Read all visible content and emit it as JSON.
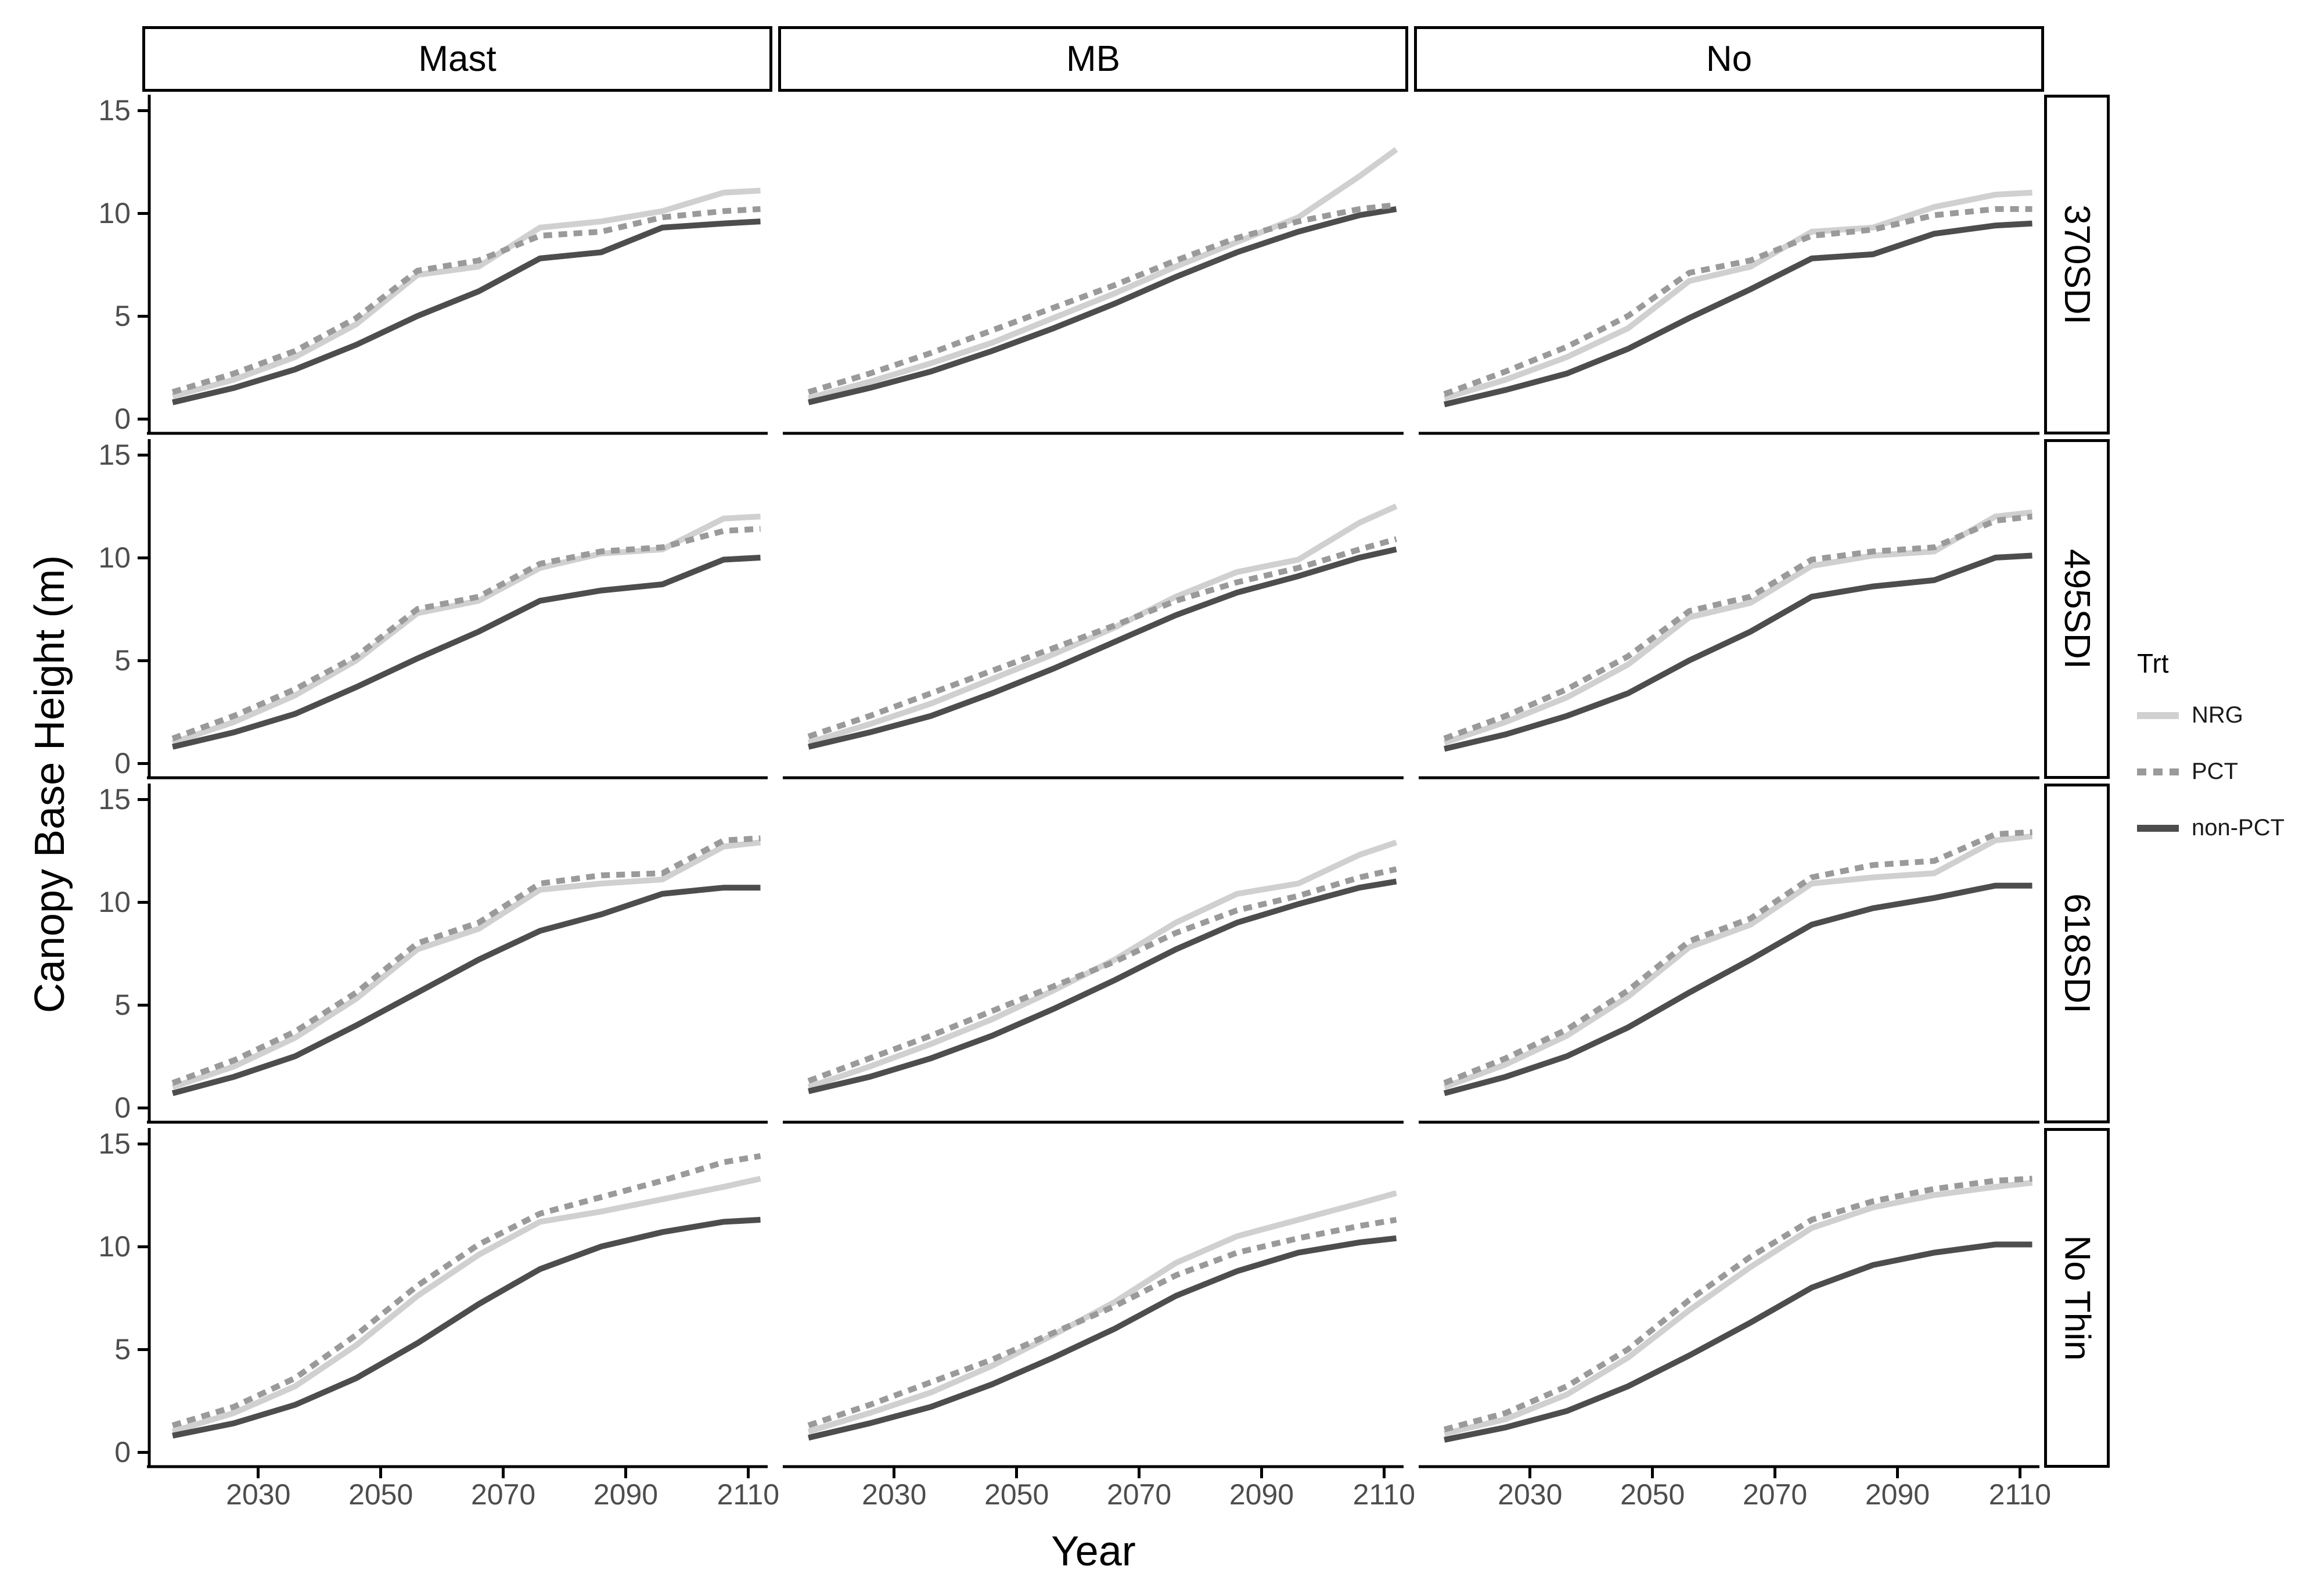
{
  "figure": {
    "y_axis_title": "Canopy Base Height (m)",
    "x_axis_title": "Year",
    "legend": {
      "title": "Trt",
      "entries": [
        {
          "label": "NRG",
          "color": "#d0d0d0",
          "dash": null
        },
        {
          "label": "PCT",
          "color": "#9a9a9a",
          "dash": "15 11"
        },
        {
          "label": "non-PCT",
          "color": "#4d4d4d",
          "dash": null
        }
      ]
    },
    "colors": {
      "axis_line": "#000000",
      "tick_text": "#4d4d4d",
      "strip_border": "#000000"
    }
  },
  "chart_data": {
    "type": "line",
    "title": "",
    "xlabel": "Year",
    "ylabel": "Canopy Base Height (m)",
    "col_facets": [
      "Mast",
      "MB",
      "No"
    ],
    "row_facets": [
      "370SDI",
      "495SDI",
      "618SDI",
      "No Thin"
    ],
    "x_ticks": [
      2030,
      2050,
      2070,
      2090,
      2110
    ],
    "y_ticks": [
      0,
      5,
      10,
      15
    ],
    "x_range": [
      2012,
      2113
    ],
    "y_range": [
      0,
      15
    ],
    "grid": "off",
    "legend_position": "right",
    "x": [
      2016,
      2026,
      2036,
      2046,
      2056,
      2066,
      2076,
      2086,
      2096,
      2106,
      2112
    ],
    "facets": [
      {
        "row": "370SDI",
        "col": "Mast",
        "series": {
          "NRG": [
            1.1,
            1.9,
            3.0,
            4.6,
            7.0,
            7.4,
            9.3,
            9.6,
            10.1,
            11.0,
            11.1
          ],
          "PCT": [
            1.3,
            2.2,
            3.3,
            4.9,
            7.2,
            7.7,
            8.9,
            9.1,
            9.8,
            10.1,
            10.2
          ],
          "non-PCT": [
            0.8,
            1.5,
            2.4,
            3.6,
            5.0,
            6.2,
            7.8,
            8.1,
            9.3,
            9.5,
            9.6
          ]
        }
      },
      {
        "row": "370SDI",
        "col": "MB",
        "series": {
          "NRG": [
            1.0,
            1.8,
            2.7,
            3.7,
            4.9,
            6.1,
            7.4,
            8.6,
            9.8,
            11.8,
            13.1
          ],
          "PCT": [
            1.3,
            2.2,
            3.2,
            4.3,
            5.4,
            6.5,
            7.7,
            8.8,
            9.6,
            10.2,
            10.4
          ],
          "non-PCT": [
            0.8,
            1.5,
            2.3,
            3.3,
            4.4,
            5.6,
            6.9,
            8.1,
            9.1,
            9.9,
            10.2
          ]
        }
      },
      {
        "row": "370SDI",
        "col": "No",
        "series": {
          "NRG": [
            1.0,
            1.9,
            3.0,
            4.4,
            6.7,
            7.4,
            9.1,
            9.3,
            10.3,
            10.9,
            11.0
          ],
          "PCT": [
            1.2,
            2.3,
            3.5,
            5.0,
            7.1,
            7.7,
            8.9,
            9.2,
            9.9,
            10.2,
            10.2
          ],
          "non-PCT": [
            0.7,
            1.4,
            2.2,
            3.4,
            4.9,
            6.3,
            7.8,
            8.0,
            9.0,
            9.4,
            9.5
          ]
        }
      },
      {
        "row": "495SDI",
        "col": "Mast",
        "series": {
          "NRG": [
            1.0,
            2.0,
            3.3,
            5.0,
            7.3,
            7.9,
            9.5,
            10.2,
            10.4,
            11.9,
            12.0
          ],
          "PCT": [
            1.2,
            2.3,
            3.6,
            5.2,
            7.5,
            8.1,
            9.7,
            10.3,
            10.5,
            11.3,
            11.4
          ],
          "non-PCT": [
            0.8,
            1.5,
            2.4,
            3.7,
            5.1,
            6.4,
            7.9,
            8.4,
            8.7,
            9.9,
            10.0
          ]
        }
      },
      {
        "row": "495SDI",
        "col": "MB",
        "series": {
          "NRG": [
            1.0,
            1.9,
            2.9,
            4.1,
            5.3,
            6.6,
            8.1,
            9.3,
            9.9,
            11.7,
            12.5
          ],
          "PCT": [
            1.3,
            2.3,
            3.4,
            4.5,
            5.6,
            6.7,
            7.9,
            8.8,
            9.5,
            10.4,
            10.9
          ],
          "non-PCT": [
            0.8,
            1.5,
            2.3,
            3.4,
            4.6,
            5.9,
            7.2,
            8.3,
            9.1,
            10.0,
            10.4
          ]
        }
      },
      {
        "row": "495SDI",
        "col": "No",
        "series": {
          "NRG": [
            1.0,
            2.0,
            3.2,
            4.8,
            7.1,
            7.8,
            9.6,
            10.1,
            10.3,
            12.0,
            12.2
          ],
          "PCT": [
            1.2,
            2.3,
            3.6,
            5.2,
            7.4,
            8.1,
            9.9,
            10.3,
            10.5,
            11.8,
            12.0
          ],
          "non-PCT": [
            0.7,
            1.4,
            2.3,
            3.4,
            5.0,
            6.4,
            8.1,
            8.6,
            8.9,
            10.0,
            10.1
          ]
        }
      },
      {
        "row": "618SDI",
        "col": "Mast",
        "series": {
          "NRG": [
            1.0,
            2.0,
            3.4,
            5.3,
            7.7,
            8.7,
            10.6,
            10.9,
            11.1,
            12.7,
            12.9
          ],
          "PCT": [
            1.2,
            2.3,
            3.7,
            5.6,
            8.0,
            9.0,
            10.9,
            11.3,
            11.4,
            13.0,
            13.1
          ],
          "non-PCT": [
            0.7,
            1.5,
            2.5,
            4.0,
            5.6,
            7.2,
            8.6,
            9.4,
            10.4,
            10.7,
            10.7
          ]
        }
      },
      {
        "row": "618SDI",
        "col": "MB",
        "series": {
          "NRG": [
            1.0,
            2.0,
            3.1,
            4.3,
            5.7,
            7.2,
            9.0,
            10.4,
            10.9,
            12.3,
            12.9
          ],
          "PCT": [
            1.3,
            2.4,
            3.5,
            4.7,
            5.9,
            7.1,
            8.5,
            9.6,
            10.3,
            11.2,
            11.6
          ],
          "non-PCT": [
            0.8,
            1.5,
            2.4,
            3.5,
            4.8,
            6.2,
            7.7,
            9.0,
            9.9,
            10.7,
            11.0
          ]
        }
      },
      {
        "row": "618SDI",
        "col": "No",
        "series": {
          "NRG": [
            1.0,
            2.1,
            3.5,
            5.4,
            7.8,
            8.9,
            10.9,
            11.2,
            11.4,
            13.0,
            13.2
          ],
          "PCT": [
            1.2,
            2.4,
            3.8,
            5.7,
            8.1,
            9.2,
            11.2,
            11.8,
            12.0,
            13.3,
            13.4
          ],
          "non-PCT": [
            0.7,
            1.5,
            2.5,
            3.9,
            5.6,
            7.2,
            8.9,
            9.7,
            10.2,
            10.8,
            10.8
          ]
        }
      },
      {
        "row": "No Thin",
        "col": "Mast",
        "series": {
          "NRG": [
            1.0,
            1.9,
            3.2,
            5.2,
            7.6,
            9.6,
            11.2,
            11.7,
            12.3,
            12.9,
            13.3
          ],
          "PCT": [
            1.3,
            2.2,
            3.6,
            5.7,
            8.1,
            10.1,
            11.6,
            12.4,
            13.2,
            14.1,
            14.4
          ],
          "non-PCT": [
            0.8,
            1.4,
            2.3,
            3.6,
            5.3,
            7.2,
            8.9,
            10.0,
            10.7,
            11.2,
            11.3
          ]
        }
      },
      {
        "row": "No Thin",
        "col": "MB",
        "series": {
          "NRG": [
            1.0,
            1.9,
            2.9,
            4.2,
            5.7,
            7.3,
            9.2,
            10.5,
            11.3,
            12.1,
            12.6
          ],
          "PCT": [
            1.3,
            2.3,
            3.4,
            4.5,
            5.8,
            7.1,
            8.6,
            9.7,
            10.4,
            11.0,
            11.3
          ],
          "non-PCT": [
            0.7,
            1.4,
            2.2,
            3.3,
            4.6,
            6.0,
            7.6,
            8.8,
            9.7,
            10.2,
            10.4
          ]
        }
      },
      {
        "row": "No Thin",
        "col": "No",
        "series": {
          "NRG": [
            0.9,
            1.6,
            2.8,
            4.6,
            6.9,
            9.0,
            10.9,
            11.9,
            12.5,
            12.9,
            13.1
          ],
          "PCT": [
            1.1,
            1.9,
            3.2,
            5.0,
            7.4,
            9.5,
            11.3,
            12.2,
            12.8,
            13.2,
            13.3
          ],
          "non-PCT": [
            0.6,
            1.2,
            2.0,
            3.2,
            4.7,
            6.3,
            8.0,
            9.1,
            9.7,
            10.1,
            10.1
          ]
        }
      }
    ]
  }
}
